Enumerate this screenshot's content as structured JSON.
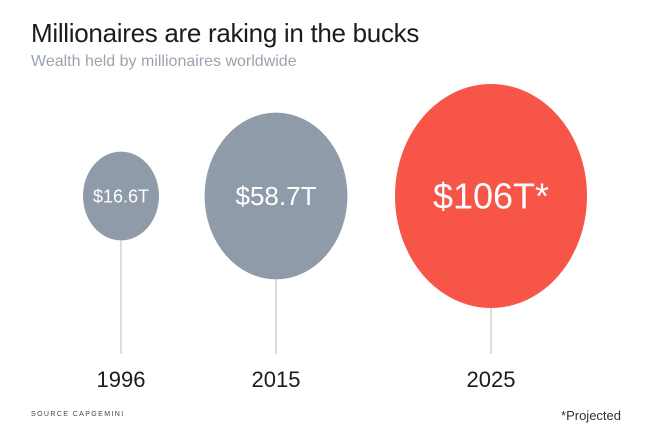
{
  "header": {
    "title": "Millionaires are raking in the bucks",
    "subtitle": "Wealth held by millionaires worldwide"
  },
  "chart_data": {
    "type": "bubble",
    "title": "Millionaires are raking in the bucks",
    "subtitle": "Wealth held by millionaires worldwide",
    "categories": [
      "1996",
      "2015",
      "2025"
    ],
    "values": [
      16.6,
      58.7,
      106
    ],
    "unit": "trillion USD",
    "labels": [
      "$16.6T",
      "$58.7T",
      "$106T*"
    ],
    "colors": [
      "#8f9ba8",
      "#8f9ba8",
      "#f65548"
    ],
    "stem_color": "#cfd3d7",
    "grid": false,
    "legend": "none"
  },
  "footer": {
    "source": "SOURCE CAPGEMINI",
    "footnote": "*Projected"
  }
}
